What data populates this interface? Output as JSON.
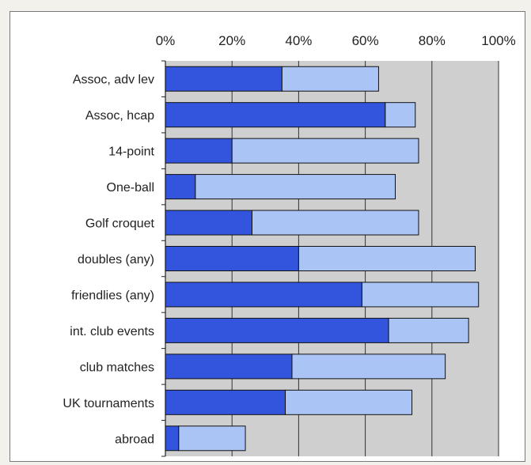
{
  "chart_data": {
    "type": "bar",
    "orientation": "horizontal",
    "stacked": true,
    "title": "",
    "xlabel": "",
    "ylabel": "",
    "xlim": [
      0,
      100
    ],
    "x_ticks": [
      "0%",
      "20%",
      "40%",
      "60%",
      "80%",
      "100%"
    ],
    "grid": true,
    "legend": "none",
    "categories": [
      "Assoc, adv lev",
      "Assoc, hcap",
      "14-point",
      "One-ball",
      "Golf croquet",
      "doubles (any)",
      "friendlies (any)",
      "int. club events",
      "club matches",
      "UK tournaments",
      "abroad"
    ],
    "series": [
      {
        "color": "#3355dd",
        "values": [
          35,
          66,
          20,
          9,
          26,
          40,
          59,
          67,
          38,
          36,
          4
        ]
      },
      {
        "color": "#a9c4f5",
        "values": [
          29,
          9,
          56,
          60,
          50,
          53,
          35,
          24,
          46,
          38,
          20
        ]
      }
    ],
    "plot_background": "#cfcfcf",
    "grid_color": "#333333"
  }
}
